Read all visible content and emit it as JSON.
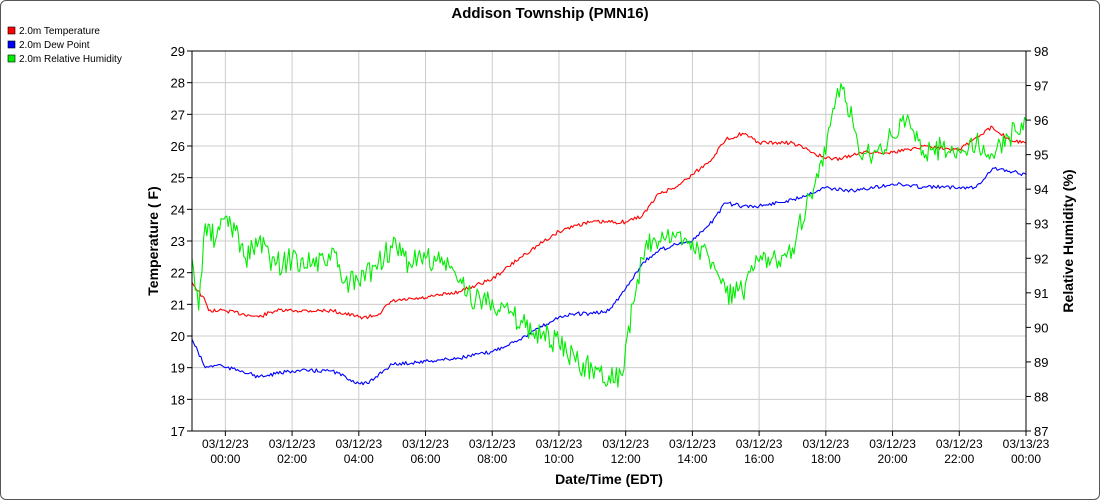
{
  "chart_data": {
    "type": "line",
    "title": "Addison Township (PMN16)",
    "xlabel": "Date/Time (EDT)",
    "ylabel_left": "Temperature ( F)",
    "ylabel_right": "Relative Humidity (%)",
    "ylim_left": [
      17,
      29
    ],
    "ylim_right": [
      87,
      98
    ],
    "yticks_left": [
      17,
      18,
      19,
      20,
      21,
      22,
      23,
      24,
      25,
      26,
      27,
      28,
      29
    ],
    "yticks_right": [
      87,
      88,
      89,
      90,
      91,
      92,
      93,
      94,
      95,
      96,
      97,
      98
    ],
    "xlim_hours": [
      -1,
      24
    ],
    "xticks": [
      {
        "hour": 0,
        "date": "03/12/23",
        "time": "00:00"
      },
      {
        "hour": 2,
        "date": "03/12/23",
        "time": "02:00"
      },
      {
        "hour": 4,
        "date": "03/12/23",
        "time": "04:00"
      },
      {
        "hour": 6,
        "date": "03/12/23",
        "time": "06:00"
      },
      {
        "hour": 8,
        "date": "03/12/23",
        "time": "08:00"
      },
      {
        "hour": 10,
        "date": "03/12/23",
        "time": "10:00"
      },
      {
        "hour": 12,
        "date": "03/12/23",
        "time": "12:00"
      },
      {
        "hour": 14,
        "date": "03/12/23",
        "time": "14:00"
      },
      {
        "hour": 16,
        "date": "03/12/23",
        "time": "16:00"
      },
      {
        "hour": 18,
        "date": "03/12/23",
        "time": "18:00"
      },
      {
        "hour": 20,
        "date": "03/12/23",
        "time": "20:00"
      },
      {
        "hour": 22,
        "date": "03/12/23",
        "time": "22:00"
      },
      {
        "hour": 24,
        "date": "03/13/23",
        "time": "00:00"
      }
    ],
    "grid": true,
    "legend_position": "top-left",
    "series": [
      {
        "name": "2.0m Temperature",
        "color": "#ff0000",
        "axis": "left",
        "x": [
          -1,
          -0.6,
          -0.5,
          -0.2,
          0,
          0.5,
          1,
          1.5,
          2,
          3,
          3.2,
          4,
          4.3,
          4.6,
          5,
          6,
          7,
          8,
          9,
          10,
          10.5,
          11,
          12,
          12.5,
          13,
          13.5,
          14,
          14.5,
          15,
          15.5,
          16,
          17,
          18,
          18.5,
          19,
          20,
          21,
          22,
          23,
          23.5,
          24
        ],
        "y": [
          21.7,
          21.1,
          20.8,
          20.8,
          20.8,
          20.7,
          20.6,
          20.8,
          20.8,
          20.8,
          20.8,
          20.6,
          20.6,
          20.7,
          21.1,
          21.2,
          21.4,
          21.8,
          22.6,
          23.3,
          23.5,
          23.6,
          23.6,
          23.8,
          24.5,
          24.7,
          25.1,
          25.5,
          26.2,
          26.4,
          26.1,
          26.1,
          25.6,
          25.6,
          25.8,
          25.8,
          26.0,
          25.9,
          26.6,
          26.2,
          26.1
        ]
      },
      {
        "name": "2.0m Dew Point",
        "color": "#0000ff",
        "axis": "left",
        "x": [
          -1,
          -0.6,
          -0.2,
          0,
          0.5,
          1,
          1.5,
          2,
          3,
          3.2,
          4,
          4.3,
          4.6,
          5,
          6,
          7,
          8,
          9,
          10,
          10.5,
          11,
          11.5,
          12,
          12.5,
          13,
          13.5,
          14,
          14.5,
          15,
          15.5,
          16,
          17,
          18,
          18.5,
          19,
          20,
          21,
          22,
          22.5,
          23,
          23.5,
          24
        ],
        "y": [
          19.9,
          19.0,
          19.1,
          19.0,
          18.9,
          18.7,
          18.8,
          18.9,
          18.9,
          18.9,
          18.5,
          18.5,
          18.8,
          19.1,
          19.2,
          19.3,
          19.5,
          20.0,
          20.6,
          20.7,
          20.7,
          20.8,
          21.5,
          22.3,
          22.7,
          22.9,
          23.0,
          23.5,
          24.2,
          24.1,
          24.1,
          24.3,
          24.7,
          24.6,
          24.6,
          24.8,
          24.7,
          24.7,
          24.7,
          25.3,
          25.2,
          25.1
        ]
      },
      {
        "name": "2.0m Relative Humidity",
        "color": "#00ee00",
        "axis": "right",
        "x": [
          -1,
          -0.8,
          -0.6,
          -0.3,
          0,
          0.3,
          0.6,
          1,
          1.5,
          2,
          3,
          3.2,
          3.5,
          4,
          4.5,
          5,
          5.5,
          6,
          6.7,
          7,
          7.5,
          8,
          8.5,
          9,
          9.5,
          10,
          10.5,
          11,
          11.5,
          11.9,
          12,
          12.3,
          12.5,
          12.8,
          13,
          13.5,
          14,
          14.5,
          15,
          15.5,
          16,
          16.5,
          17,
          17.5,
          18,
          18.3,
          18.5,
          18.8,
          19,
          19.5,
          20,
          20.5,
          21,
          21.5,
          22,
          22.5,
          23,
          23.5,
          24
        ],
        "y": [
          92.0,
          90.5,
          93.0,
          92.5,
          93.2,
          92.8,
          92.0,
          92.5,
          91.8,
          92.0,
          91.8,
          92.3,
          91.3,
          91.3,
          91.8,
          92.3,
          91.9,
          92.0,
          91.8,
          91.3,
          90.8,
          90.8,
          90.4,
          90.0,
          89.8,
          89.5,
          89.0,
          88.8,
          88.6,
          88.6,
          89.5,
          91.0,
          92.0,
          92.5,
          92.5,
          92.6,
          92.5,
          92.0,
          91.0,
          91.0,
          91.9,
          92.0,
          92.3,
          93.8,
          95.0,
          96.6,
          96.9,
          96.0,
          95.0,
          95.1,
          95.5,
          96.0,
          95.0,
          95.2,
          95.1,
          95.3,
          95.0,
          95.5,
          96.0
        ]
      }
    ]
  }
}
